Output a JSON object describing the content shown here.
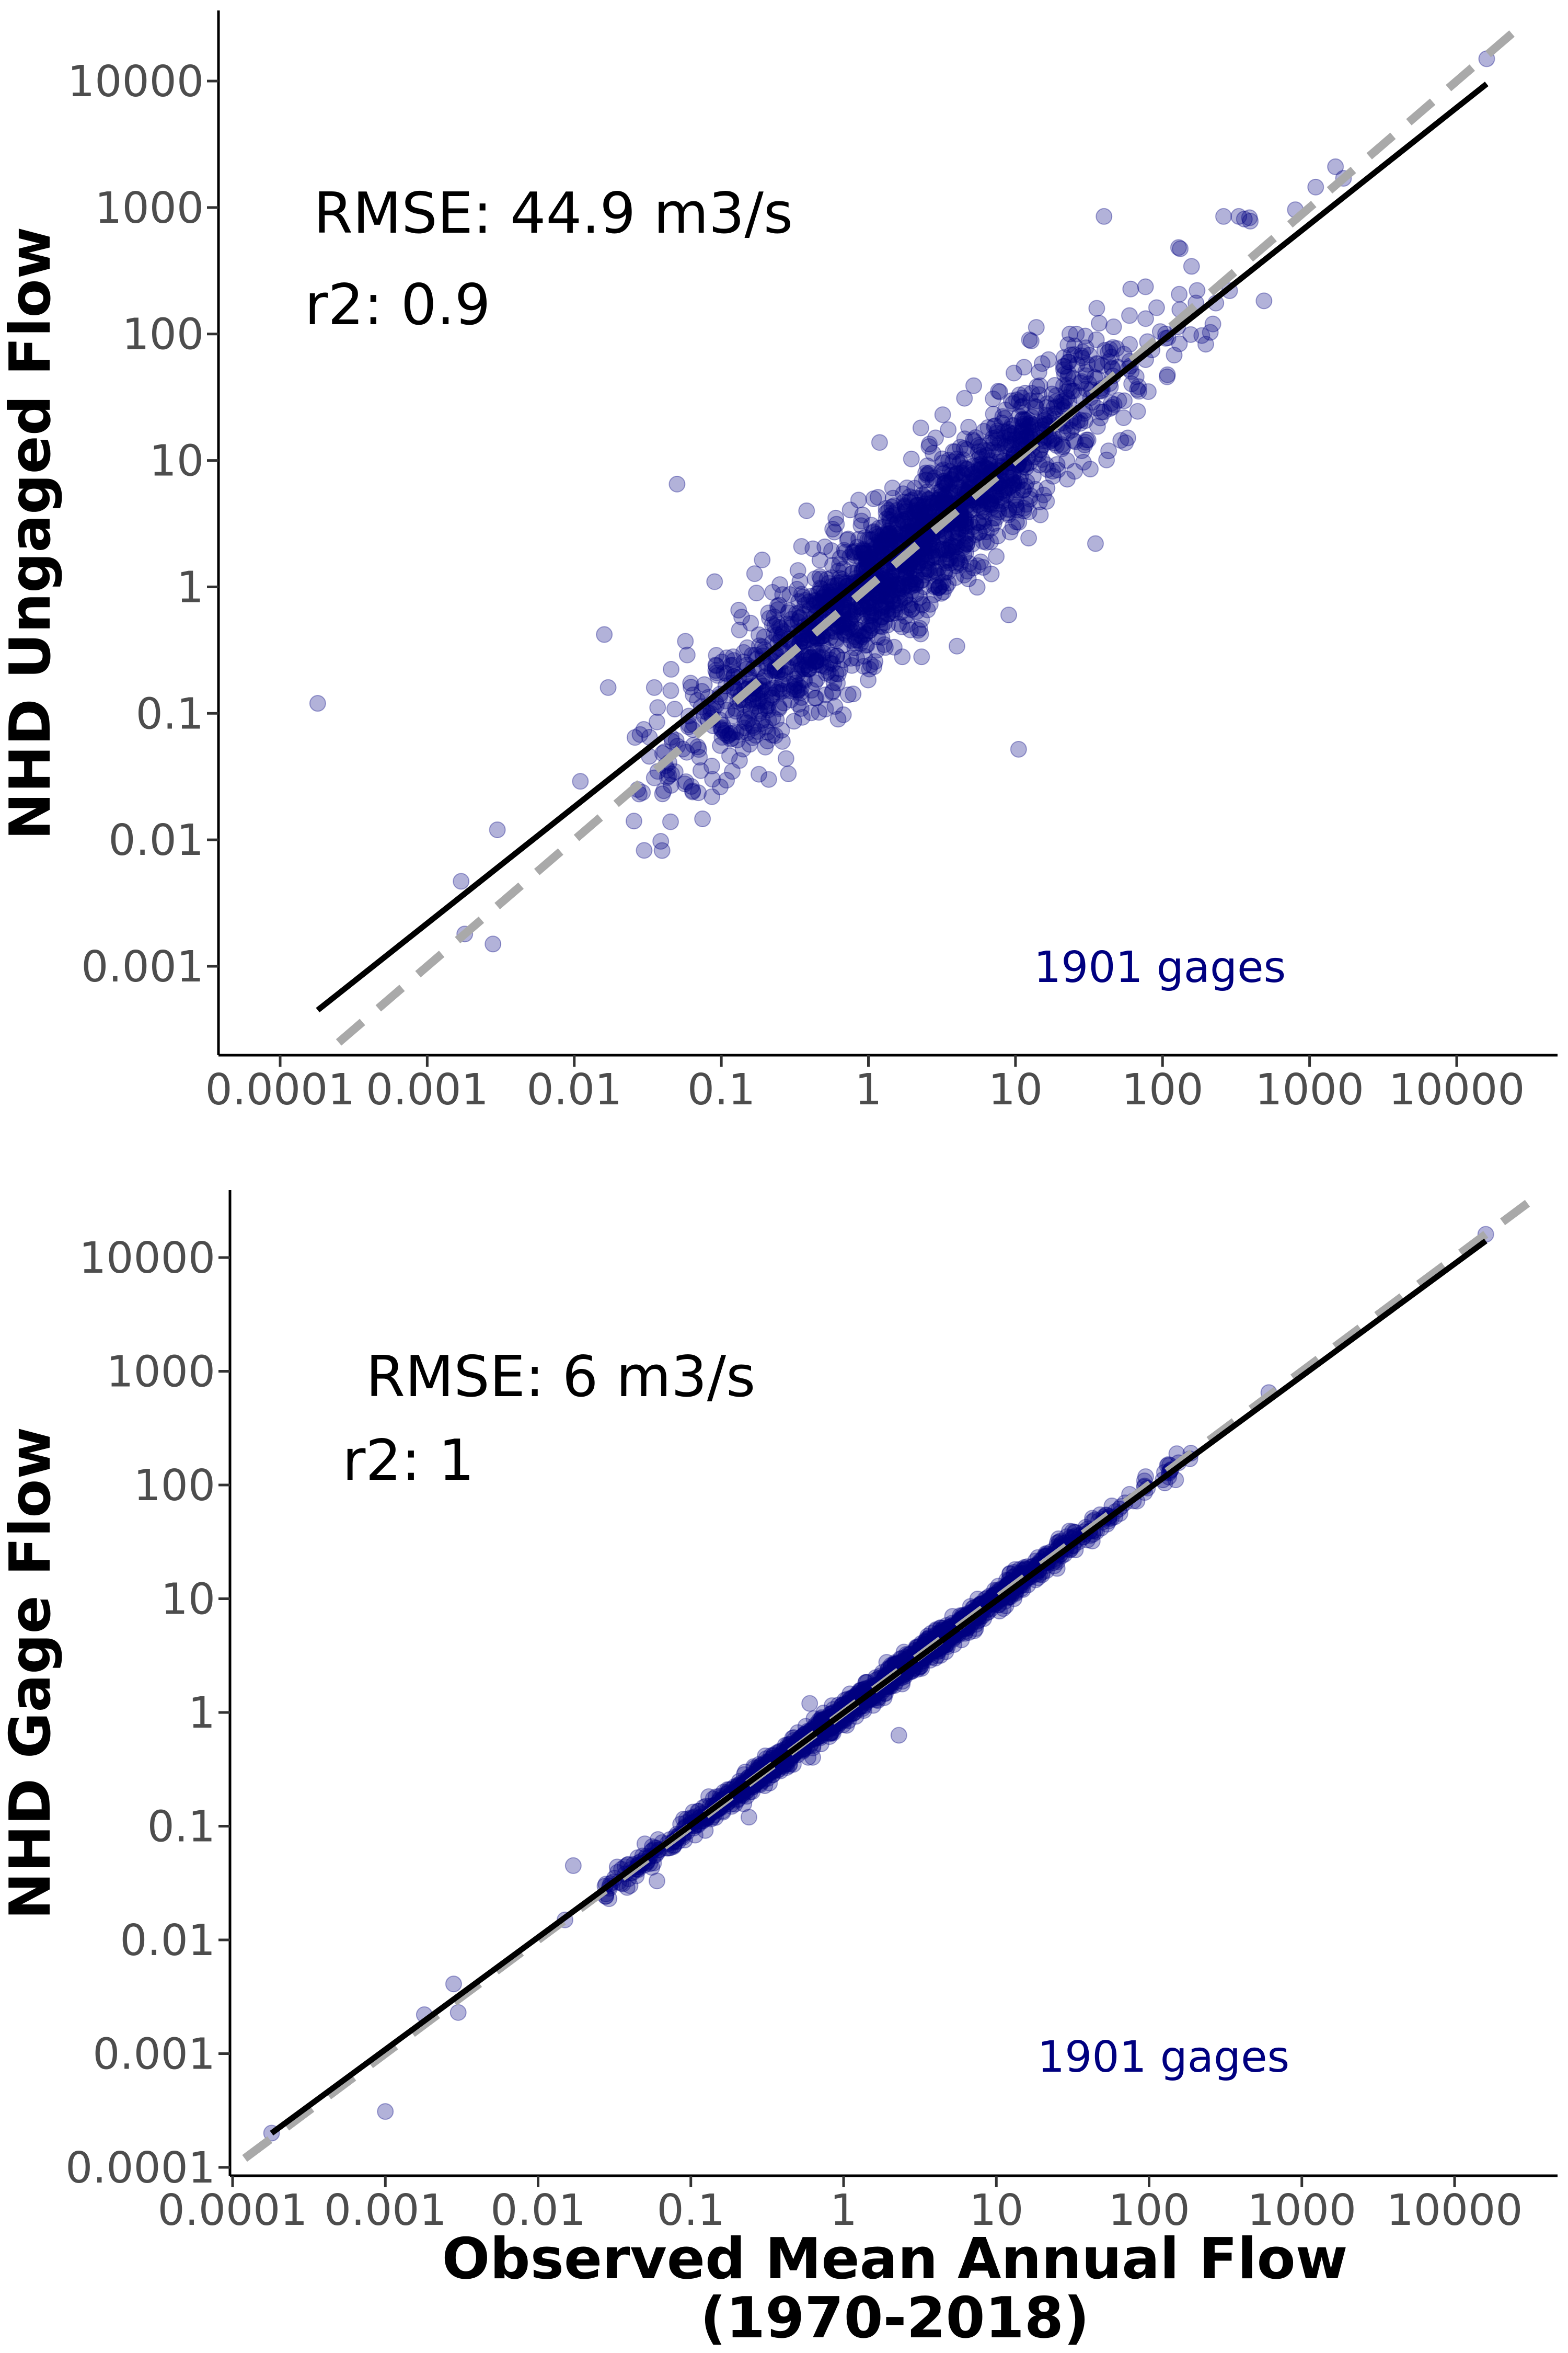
{
  "chart_data": [
    {
      "type": "scatter",
      "title": "",
      "xlabel": "",
      "ylabel": "NHD Ungaged Flow",
      "xscale": "log",
      "yscale": "log",
      "xlim": [
        0.0001,
        30000
      ],
      "ylim": [
        0.00025,
        40000
      ],
      "x_ticks": [
        "0.0001",
        "0.001",
        "0.01",
        "0.1",
        "1",
        "10",
        "100",
        "1000",
        "10000"
      ],
      "y_ticks": [
        "0.001",
        "0.01",
        "0.1",
        "1",
        "10",
        "100",
        "1000",
        "10000"
      ],
      "grid": false,
      "annotations": {
        "rmse": "RMSE: 44.9 m3/s",
        "r2": "r2: 0.9",
        "count": "1901 gages"
      },
      "point_color": "#000080",
      "fit_line": {
        "x": [
          0.00018,
          16000
        ],
        "y": [
          0.00045,
          9500
        ],
        "color": "#000000"
      },
      "one_to_one_line": {
        "x": [
          0.00025,
          30000
        ],
        "y": [
          0.00025,
          30000
        ],
        "color": "#a9a9a9",
        "style": "dashed"
      },
      "outlier_points": {
        "x": [
          0.00018,
          0.0018,
          0.0028,
          0.003,
          0.0017,
          0.011,
          0.016,
          0.017,
          0.027,
          0.028,
          0.035,
          0.05,
          0.09,
          0.15,
          0.18,
          0.21,
          0.26,
          0.28,
          0.38,
          0.6,
          0.9,
          1.3,
          1.7,
          1.8,
          2.3,
          3.2,
          4.0,
          4.5,
          5.2,
          6.1,
          10.5,
          7.0,
          9.0,
          18,
          35,
          40,
          80,
          120,
          220,
          260,
          330,
          360,
          390,
          395,
          800,
          1100,
          1500,
          1700,
          16000
        ],
        "y": [
          0.12,
          0.0018,
          0.0015,
          0.012,
          0.0047,
          0.029,
          0.42,
          0.16,
          0.025,
          0.068,
          0.16,
          6.5,
          1.1,
          0.07,
          0.033,
          0.03,
          0.06,
          0.51,
          4.0,
          3.5,
          0.85,
          1.0,
          0.28,
          4.1,
          0.28,
          23,
          0.34,
          31,
          39,
          17,
          0.052,
          15,
          0.6,
          7.5,
          2.2,
          850,
          35,
          68,
          120,
          850,
          850,
          810,
          830,
          780,
          960,
          1450,
          2100,
          1700,
          15000
        ]
      },
      "generated_cloud": {
        "n": 1901,
        "center_x": 1.7,
        "center_y": 1.7,
        "spread_x_decades": 0.75,
        "scatter_y_decades": 0.28
      }
    },
    {
      "type": "scatter",
      "title": "",
      "xlabel": "Observed Mean Annual Flow\n(1970-2018)",
      "xlabel_lines": [
        "Observed Mean Annual Flow",
        "(1970-2018)"
      ],
      "ylabel": "NHD Gage Flow",
      "xscale": "log",
      "yscale": "log",
      "xlim": [
        0.0001,
        30000
      ],
      "ylim": [
        8e-05,
        30000
      ],
      "x_ticks": [
        "0.0001",
        "0.001",
        "0.01",
        "0.1",
        "1",
        "10",
        "100",
        "1000",
        "10000"
      ],
      "y_ticks": [
        "0.0001",
        "0.001",
        "0.01",
        "0.1",
        "1",
        "10",
        "100",
        "1000",
        "10000"
      ],
      "grid": false,
      "annotations": {
        "rmse": "RMSE: 6 m3/s",
        "r2": "r2: 1",
        "count": "1901 gages"
      },
      "point_color": "#000080",
      "fit_line": {
        "x": [
          0.00018,
          16000
        ],
        "y": [
          0.0002,
          14000
        ],
        "color": "#000000"
      },
      "one_to_one_line": {
        "x": [
          0.00012,
          30000
        ],
        "y": [
          0.00012,
          30000
        ],
        "color": "#a9a9a9",
        "style": "dashed"
      },
      "outlier_points": {
        "x": [
          0.00018,
          0.001,
          0.0018,
          0.0028,
          0.003,
          0.015,
          0.017,
          0.04,
          0.05,
          0.06,
          0.24,
          0.6,
          2.3,
          16000
        ],
        "y": [
          0.0002,
          0.00031,
          0.0022,
          0.0041,
          0.0023,
          0.015,
          0.045,
          0.03,
          0.07,
          0.033,
          0.12,
          1.2,
          0.63,
          16000
        ]
      },
      "generated_cloud": {
        "n": 1901,
        "center_x": 1.7,
        "center_y": 1.7,
        "spread_x_decades": 0.75,
        "scatter_y_decades": 0.05
      }
    }
  ]
}
